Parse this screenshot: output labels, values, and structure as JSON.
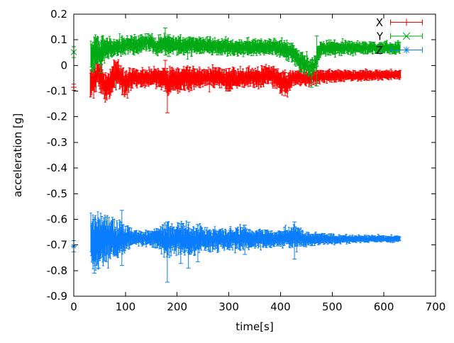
{
  "window": {
    "background": "#ffffff",
    "axis_color": "#000000",
    "text_color": "#000000"
  },
  "chart_data": {
    "type": "scatter",
    "style": "errorbars",
    "title": "",
    "xlabel": "time[s]",
    "ylabel": "acceleration [g]",
    "xlim": [
      0,
      700
    ],
    "ylim": [
      -0.9,
      0.2
    ],
    "grid": false,
    "legend_position": "top-right",
    "x_tick_values": [
      0,
      100,
      200,
      300,
      400,
      500,
      600,
      700
    ],
    "x_tick_labels": [
      "0",
      "100",
      "200",
      "300",
      "400",
      "500",
      "600",
      "700"
    ],
    "y_tick_values": [
      0.2,
      0.1,
      0,
      -0.1,
      -0.2,
      -0.3,
      -0.4,
      -0.5,
      -0.6,
      -0.7,
      -0.8,
      -0.9
    ],
    "y_tick_labels": [
      "0.2",
      "0.1",
      "0",
      "-0.1",
      "-0.2",
      "-0.3",
      "-0.4",
      "-0.5",
      "-0.6",
      "-0.7",
      "-0.8",
      "-0.9"
    ],
    "series": [
      {
        "name": "X",
        "color": "#ff0000",
        "marker": "plus",
        "seed": 101,
        "start_point": {
          "t": 0,
          "value": -0.085,
          "err": 0.012
        },
        "band": [
          [
            32,
            -0.07,
            0.05
          ],
          [
            40,
            -0.05,
            0.055
          ],
          [
            47,
            -0.022,
            0.046
          ],
          [
            53,
            -0.042,
            0.05
          ],
          [
            60,
            -0.085,
            0.04
          ],
          [
            68,
            -0.078,
            0.044
          ],
          [
            76,
            -0.05,
            0.05
          ],
          [
            85,
            -0.022,
            0.042
          ],
          [
            93,
            -0.052,
            0.045
          ],
          [
            100,
            -0.07,
            0.04
          ],
          [
            110,
            -0.052,
            0.034
          ],
          [
            125,
            -0.047,
            0.03
          ],
          [
            140,
            -0.05,
            0.028
          ],
          [
            155,
            -0.047,
            0.028
          ],
          [
            168,
            -0.052,
            0.032
          ],
          [
            176,
            -0.045,
            0.038
          ],
          [
            182,
            -0.068,
            0.045
          ],
          [
            190,
            -0.052,
            0.035
          ],
          [
            203,
            -0.06,
            0.04
          ],
          [
            214,
            -0.046,
            0.036
          ],
          [
            222,
            -0.056,
            0.04
          ],
          [
            235,
            -0.05,
            0.032
          ],
          [
            250,
            -0.046,
            0.03
          ],
          [
            268,
            -0.05,
            0.032
          ],
          [
            284,
            -0.046,
            0.03
          ],
          [
            298,
            -0.065,
            0.038
          ],
          [
            307,
            -0.047,
            0.034
          ],
          [
            315,
            -0.058,
            0.034
          ],
          [
            325,
            -0.05,
            0.03
          ],
          [
            340,
            -0.045,
            0.028
          ],
          [
            355,
            -0.05,
            0.03
          ],
          [
            368,
            -0.042,
            0.03
          ],
          [
            379,
            -0.033,
            0.03
          ],
          [
            392,
            -0.05,
            0.032
          ],
          [
            403,
            -0.073,
            0.04
          ],
          [
            414,
            -0.068,
            0.038
          ],
          [
            425,
            -0.05,
            0.028
          ],
          [
            440,
            -0.046,
            0.024
          ],
          [
            455,
            -0.05,
            0.023
          ],
          [
            470,
            -0.044,
            0.02
          ],
          [
            500,
            -0.042,
            0.018
          ],
          [
            540,
            -0.04,
            0.016
          ],
          [
            580,
            -0.038,
            0.015
          ],
          [
            632,
            -0.036,
            0.014
          ]
        ],
        "outliers": [
          [
            52,
            -0.105,
            0.015
          ],
          [
            177,
            -0.1,
            0.02
          ],
          [
            181,
            -0.185,
            -0.025
          ],
          [
            212,
            -0.095,
            -0.02
          ],
          [
            300,
            -0.1,
            -0.012
          ],
          [
            409,
            -0.118,
            -0.028
          ]
        ]
      },
      {
        "name": "Y",
        "color": "#00aa14",
        "marker": "cross",
        "seed": 202,
        "start_point": {
          "t": 0,
          "value": 0.052,
          "err": 0.021
        },
        "band": [
          [
            33,
            0.04,
            0.058
          ],
          [
            42,
            0.048,
            0.05
          ],
          [
            52,
            0.052,
            0.046
          ],
          [
            62,
            0.062,
            0.036
          ],
          [
            75,
            0.068,
            0.03
          ],
          [
            90,
            0.071,
            0.028
          ],
          [
            104,
            0.08,
            0.027
          ],
          [
            118,
            0.078,
            0.027
          ],
          [
            130,
            0.085,
            0.028
          ],
          [
            142,
            0.09,
            0.026
          ],
          [
            152,
            0.087,
            0.026
          ],
          [
            160,
            0.072,
            0.026
          ],
          [
            168,
            0.076,
            0.027
          ],
          [
            177,
            0.085,
            0.03
          ],
          [
            190,
            0.078,
            0.028
          ],
          [
            205,
            0.082,
            0.028
          ],
          [
            218,
            0.075,
            0.027
          ],
          [
            235,
            0.08,
            0.027
          ],
          [
            252,
            0.077,
            0.026
          ],
          [
            270,
            0.073,
            0.026
          ],
          [
            290,
            0.076,
            0.027
          ],
          [
            310,
            0.072,
            0.026
          ],
          [
            330,
            0.07,
            0.026
          ],
          [
            350,
            0.073,
            0.027
          ],
          [
            370,
            0.071,
            0.026
          ],
          [
            390,
            0.07,
            0.026
          ],
          [
            408,
            0.062,
            0.028
          ],
          [
            420,
            0.05,
            0.03
          ],
          [
            434,
            0.028,
            0.032
          ],
          [
            447,
            0.005,
            0.03
          ],
          [
            458,
            -0.012,
            0.026
          ],
          [
            465,
            0.0,
            0.028
          ],
          [
            471,
            0.03,
            0.03
          ],
          [
            478,
            0.062,
            0.026
          ],
          [
            495,
            0.07,
            0.023
          ],
          [
            520,
            0.071,
            0.021
          ],
          [
            550,
            0.07,
            0.019
          ],
          [
            590,
            0.069,
            0.018
          ],
          [
            632,
            0.068,
            0.017
          ]
        ],
        "outliers": [
          [
            52,
            -0.028,
            0.062
          ],
          [
            177,
            0.04,
            0.146
          ],
          [
            184,
            0.035,
            0.12
          ],
          [
            460,
            -0.085,
            0.02
          ],
          [
            470,
            -0.08,
            0.115
          ]
        ]
      },
      {
        "name": "Z",
        "color": "#0a7dff",
        "marker": "star",
        "seed": 303,
        "start_point": {
          "t": 0,
          "value": -0.705,
          "err": 0.022
        },
        "band": [
          [
            33,
            -0.69,
            0.088
          ],
          [
            42,
            -0.688,
            0.085
          ],
          [
            52,
            -0.685,
            0.08
          ],
          [
            62,
            -0.683,
            0.078
          ],
          [
            72,
            -0.68,
            0.072
          ],
          [
            82,
            -0.678,
            0.062
          ],
          [
            92,
            -0.676,
            0.05
          ],
          [
            102,
            -0.675,
            0.036
          ],
          [
            115,
            -0.673,
            0.026
          ],
          [
            132,
            -0.672,
            0.022
          ],
          [
            148,
            -0.674,
            0.024
          ],
          [
            160,
            -0.676,
            0.032
          ],
          [
            170,
            -0.68,
            0.045
          ],
          [
            181,
            -0.684,
            0.055
          ],
          [
            192,
            -0.679,
            0.046
          ],
          [
            205,
            -0.676,
            0.05
          ],
          [
            220,
            -0.68,
            0.05
          ],
          [
            235,
            -0.678,
            0.042
          ],
          [
            255,
            -0.676,
            0.038
          ],
          [
            275,
            -0.678,
            0.035
          ],
          [
            295,
            -0.676,
            0.032
          ],
          [
            312,
            -0.675,
            0.035
          ],
          [
            328,
            -0.673,
            0.04
          ],
          [
            342,
            -0.676,
            0.032
          ],
          [
            360,
            -0.674,
            0.028
          ],
          [
            380,
            -0.675,
            0.027
          ],
          [
            398,
            -0.674,
            0.025
          ],
          [
            412,
            -0.672,
            0.028
          ],
          [
            426,
            -0.668,
            0.037
          ],
          [
            438,
            -0.673,
            0.028
          ],
          [
            452,
            -0.676,
            0.022
          ],
          [
            468,
            -0.676,
            0.018
          ],
          [
            490,
            -0.676,
            0.015
          ],
          [
            515,
            -0.677,
            0.013
          ],
          [
            545,
            -0.677,
            0.011
          ],
          [
            580,
            -0.676,
            0.01
          ],
          [
            610,
            -0.676,
            0.009
          ],
          [
            632,
            -0.676,
            0.009
          ]
        ],
        "outliers": [
          [
            40,
            -0.81,
            -0.6
          ],
          [
            48,
            -0.79,
            -0.605
          ],
          [
            93,
            -0.78,
            -0.565
          ],
          [
            181,
            -0.845,
            -0.61
          ],
          [
            207,
            -0.772,
            -0.618
          ],
          [
            222,
            -0.79,
            -0.612
          ],
          [
            240,
            -0.765,
            -0.62
          ],
          [
            331,
            -0.737,
            -0.623
          ],
          [
            427,
            -0.755,
            -0.61
          ]
        ]
      }
    ]
  }
}
